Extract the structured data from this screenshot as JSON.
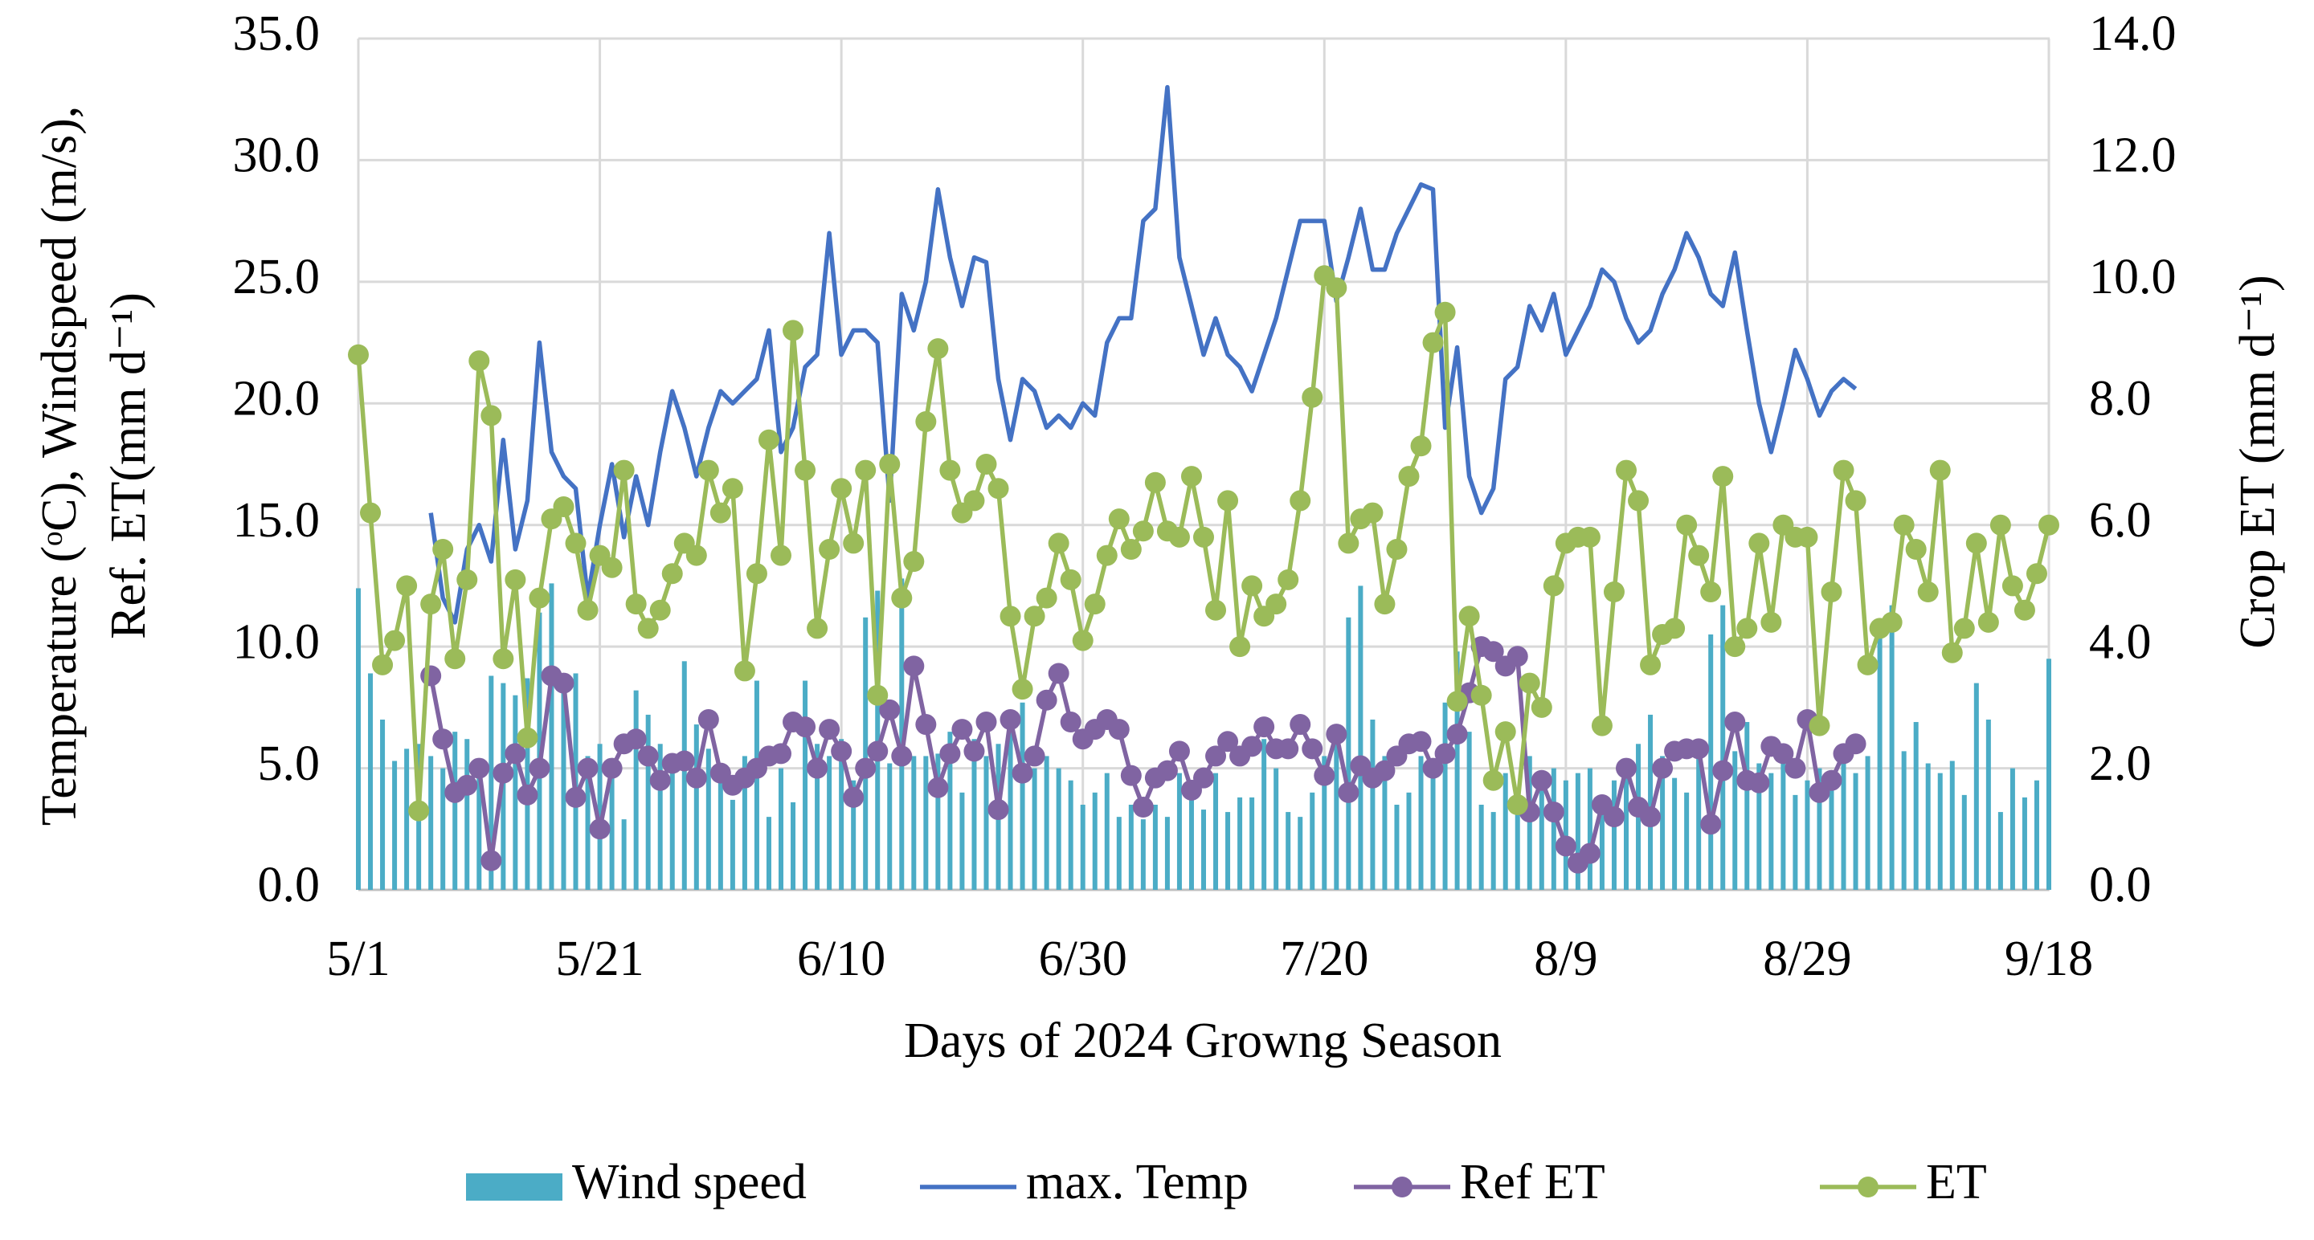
{
  "chart_data": {
    "type": "combo",
    "categories": [
      "5/1",
      null,
      null,
      null,
      null,
      null,
      null,
      null,
      null,
      null,
      null,
      null,
      null,
      null,
      null,
      null,
      null,
      null,
      null,
      null,
      "5/21",
      null,
      null,
      null,
      null,
      null,
      null,
      null,
      null,
      null,
      null,
      null,
      null,
      null,
      null,
      null,
      null,
      null,
      null,
      null,
      "6/10",
      null,
      null,
      null,
      null,
      null,
      null,
      null,
      null,
      null,
      null,
      null,
      null,
      null,
      null,
      null,
      null,
      null,
      null,
      null,
      "6/30",
      null,
      null,
      null,
      null,
      null,
      null,
      null,
      null,
      null,
      null,
      null,
      null,
      null,
      null,
      null,
      null,
      null,
      null,
      null,
      "7/20",
      null,
      null,
      null,
      null,
      null,
      null,
      null,
      null,
      null,
      null,
      null,
      null,
      null,
      null,
      null,
      null,
      null,
      null,
      null,
      "8/9",
      null,
      null,
      null,
      null,
      null,
      null,
      null,
      null,
      null,
      null,
      null,
      null,
      null,
      null,
      null,
      null,
      null,
      null,
      null,
      "8/29",
      null,
      null,
      null,
      null,
      null,
      null,
      null,
      null,
      null,
      null,
      null,
      null,
      null,
      null,
      null,
      null,
      null,
      null,
      null,
      "9/18"
    ],
    "xlabel": "Days of 2024 Growng Season",
    "ylabel": [
      "Temperature (ᵒC), Windspeed (m/s),",
      "Ref. ET(mm d⁻¹)"
    ],
    "y2label": "Crop ET (mm d⁻¹)",
    "ylim": [
      0,
      35
    ],
    "yticks": [
      {
        "value": 0,
        "label": "0.0"
      },
      {
        "value": 5,
        "label": "5.0"
      },
      {
        "value": 10,
        "label": "10.0"
      },
      {
        "value": 15,
        "label": "15.0"
      },
      {
        "value": 20,
        "label": "20.0"
      },
      {
        "value": 25,
        "label": "25.0"
      },
      {
        "value": 30,
        "label": "30.0"
      },
      {
        "value": 35,
        "label": "35.0"
      }
    ],
    "y2lim": [
      0,
      14
    ],
    "y2ticks": [
      {
        "value": 0,
        "label": "0.0"
      },
      {
        "value": 2,
        "label": "2.0"
      },
      {
        "value": 4,
        "label": "4.0"
      },
      {
        "value": 6,
        "label": "6.0"
      },
      {
        "value": 8,
        "label": "8.0"
      },
      {
        "value": 10,
        "label": "10.0"
      },
      {
        "value": 12,
        "label": "12.0"
      },
      {
        "value": 14,
        "label": "14.0"
      }
    ],
    "grid": true,
    "legend": "bottom",
    "series": [
      {
        "name": "Wind speed",
        "color": "#4bacc6",
        "type": "bar",
        "values": [
          12.4,
          8.9,
          7.0,
          5.3,
          5.8,
          6.0,
          5.5,
          5.0,
          6.5,
          6.2,
          5.0,
          8.8,
          8.5,
          8.0,
          8.7,
          11.4,
          12.6,
          8.2,
          8.9,
          5.5,
          6.0,
          5.0,
          2.9,
          8.2,
          7.2,
          6.0,
          5.5,
          9.4,
          6.8,
          5.8,
          5.0,
          3.7,
          5.5,
          8.6,
          3.0,
          5.0,
          3.6,
          8.6,
          6.0,
          5.5,
          6.2,
          4.5,
          11.2,
          12.3,
          5.2,
          12.8,
          5.5,
          5.5,
          5.6,
          6.5,
          4.0,
          6.2,
          5.5,
          6.0,
          6.5,
          7.7,
          5.0,
          5.5,
          5.0,
          4.5,
          3.5,
          4.0,
          4.8,
          3.0,
          3.5,
          2.9,
          3.5,
          3.0,
          4.8,
          4.5,
          3.3,
          4.8,
          3.2,
          3.8,
          3.8,
          6.2,
          5.0,
          3.2,
          3.0,
          4.0,
          5.5,
          6.8,
          11.2,
          12.5,
          7.0,
          5.5,
          3.5,
          4.0,
          5.5,
          4.8,
          7.7,
          9.8,
          6.5,
          3.5,
          3.2,
          4.8,
          4.0,
          5.5,
          4.2,
          5.0,
          4.5,
          4.8,
          5.0,
          3.5,
          4.5,
          5.0,
          6.0,
          7.2,
          5.5,
          4.6,
          4.0,
          5.5,
          10.5,
          11.7,
          5.7,
          6.9,
          5.2,
          4.8,
          5.3,
          3.9,
          4.5,
          5.0,
          4.2,
          6.0,
          4.8,
          5.5,
          10.5,
          11.7,
          5.7,
          6.9,
          5.2,
          4.8,
          5.3,
          3.9,
          8.5,
          7.0,
          3.2,
          5.0,
          3.8,
          4.5,
          9.5
        ]
      },
      {
        "name": "max. Temp",
        "color": "#4472c4",
        "type": "line",
        "values": [
          null,
          null,
          null,
          null,
          null,
          null,
          15.5,
          12,
          11,
          14,
          15,
          13.5,
          18.5,
          14,
          16,
          22.5,
          18,
          17,
          16.5,
          12,
          15,
          17.5,
          14.5,
          17,
          15,
          18,
          20.5,
          19,
          17,
          19,
          20.5,
          20,
          20.5,
          21,
          23,
          18,
          19,
          21.5,
          22,
          27,
          22,
          23,
          23,
          22.5,
          16,
          24.5,
          23,
          25,
          28.8,
          26,
          24,
          26,
          25.8,
          21,
          18.5,
          21,
          20.5,
          19,
          19.5,
          19,
          20,
          19.5,
          22.5,
          23.5,
          23.5,
          27.5,
          28,
          33,
          26,
          24,
          22,
          23.5,
          22,
          21.5,
          20.5,
          22,
          23.5,
          25.5,
          27.5,
          27.5,
          27.5,
          24.2,
          26,
          28,
          25.5,
          25.5,
          27,
          28,
          29,
          28.8,
          19,
          22.3,
          17,
          15.5,
          16.5,
          21,
          21.5,
          24,
          23,
          24.5,
          22,
          23,
          24,
          25.5,
          25,
          23.5,
          22.5,
          23,
          24.5,
          25.5,
          27,
          26,
          24.5,
          24,
          26.2,
          23,
          20,
          18,
          20,
          22.2,
          21,
          19.5,
          20.5,
          21,
          20.6,
          null,
          null,
          null,
          null,
          null,
          null,
          null,
          null,
          null,
          null,
          null,
          null,
          null,
          null,
          null,
          null
        ]
      },
      {
        "name": "Ref ET",
        "color": "#8064a2",
        "type": "line",
        "marker": true,
        "values": [
          null,
          null,
          null,
          null,
          null,
          null,
          8.8,
          6.2,
          4.0,
          4.3,
          5.0,
          1.2,
          4.8,
          5.6,
          3.9,
          5.0,
          8.8,
          8.5,
          3.8,
          5.0,
          2.5,
          5.0,
          6.0,
          6.2,
          5.5,
          4.5,
          5.2,
          5.3,
          4.6,
          7.0,
          4.8,
          4.3,
          4.6,
          5.0,
          5.5,
          5.6,
          6.9,
          6.7,
          5.0,
          6.6,
          5.7,
          3.8,
          5.0,
          5.7,
          7.4,
          5.5,
          9.2,
          6.8,
          4.2,
          5.6,
          6.6,
          5.7,
          6.9,
          3.3,
          7.0,
          4.8,
          5.5,
          7.8,
          8.9,
          6.9,
          6.2,
          6.6,
          7.0,
          6.6,
          4.7,
          3.4,
          4.6,
          4.9,
          5.7,
          4.1,
          4.6,
          5.5,
          6.1,
          5.5,
          5.9,
          6.7,
          5.8,
          5.8,
          6.8,
          5.8,
          4.7,
          6.4,
          4.0,
          5.1,
          4.6,
          4.9,
          5.5,
          6.0,
          6.1,
          5.0,
          5.6,
          6.4,
          8.1,
          10.0,
          9.8,
          9.2,
          9.6,
          3.2,
          4.5,
          3.2,
          1.8,
          1.1,
          1.5,
          3.5,
          3.0,
          5.0,
          3.4,
          3.0,
          5.0,
          5.7,
          5.8,
          5.8,
          2.7,
          4.9,
          6.9,
          4.5,
          4.4,
          5.9,
          5.6,
          5.0,
          7.0,
          4.0,
          4.5,
          5.6,
          6.0,
          null,
          null,
          null,
          null,
          null,
          null,
          null,
          null,
          null,
          null,
          null,
          null,
          null,
          null,
          null,
          null
        ]
      },
      {
        "name": "ET",
        "color": "#9bbb59",
        "type": "line",
        "marker": true,
        "axis": "y2",
        "values": [
          8.8,
          6.2,
          3.7,
          4.1,
          5.0,
          1.3,
          4.7,
          5.6,
          3.8,
          5.1,
          8.7,
          7.8,
          3.8,
          5.1,
          2.5,
          4.8,
          6.1,
          6.3,
          5.7,
          4.6,
          5.5,
          5.3,
          6.9,
          4.7,
          4.3,
          4.6,
          5.2,
          5.7,
          5.5,
          6.9,
          6.2,
          6.6,
          3.6,
          5.2,
          7.4,
          5.5,
          9.2,
          6.9,
          4.3,
          5.6,
          6.6,
          5.7,
          6.9,
          3.2,
          7.0,
          4.8,
          5.4,
          7.7,
          8.9,
          6.9,
          6.2,
          6.4,
          7.0,
          6.6,
          4.5,
          3.3,
          4.5,
          4.8,
          5.7,
          5.1,
          4.1,
          4.7,
          5.5,
          6.1,
          5.6,
          5.9,
          6.7,
          5.9,
          5.8,
          6.8,
          5.8,
          4.6,
          6.4,
          4.0,
          5.0,
          4.5,
          4.7,
          5.1,
          6.4,
          8.1,
          10.1,
          9.9,
          5.7,
          6.1,
          6.2,
          4.7,
          5.6,
          6.8,
          7.3,
          9.0,
          9.5,
          3.1,
          4.5,
          3.2,
          1.8,
          2.6,
          1.4,
          3.4,
          3.0,
          5.0,
          5.7,
          5.8,
          5.8,
          2.7,
          4.9,
          6.9,
          6.4,
          3.7,
          4.2,
          4.3,
          6.0,
          5.5,
          4.9,
          6.8,
          4.0,
          4.3,
          5.7,
          4.4,
          6.0,
          5.8,
          5.8,
          2.7,
          4.9,
          6.9,
          6.4,
          3.7,
          4.3,
          4.4,
          6.0,
          5.6,
          4.9,
          6.9,
          3.9,
          4.3,
          5.7,
          4.4,
          6.0,
          5.0,
          4.6,
          5.2,
          6.0
        ]
      }
    ]
  }
}
